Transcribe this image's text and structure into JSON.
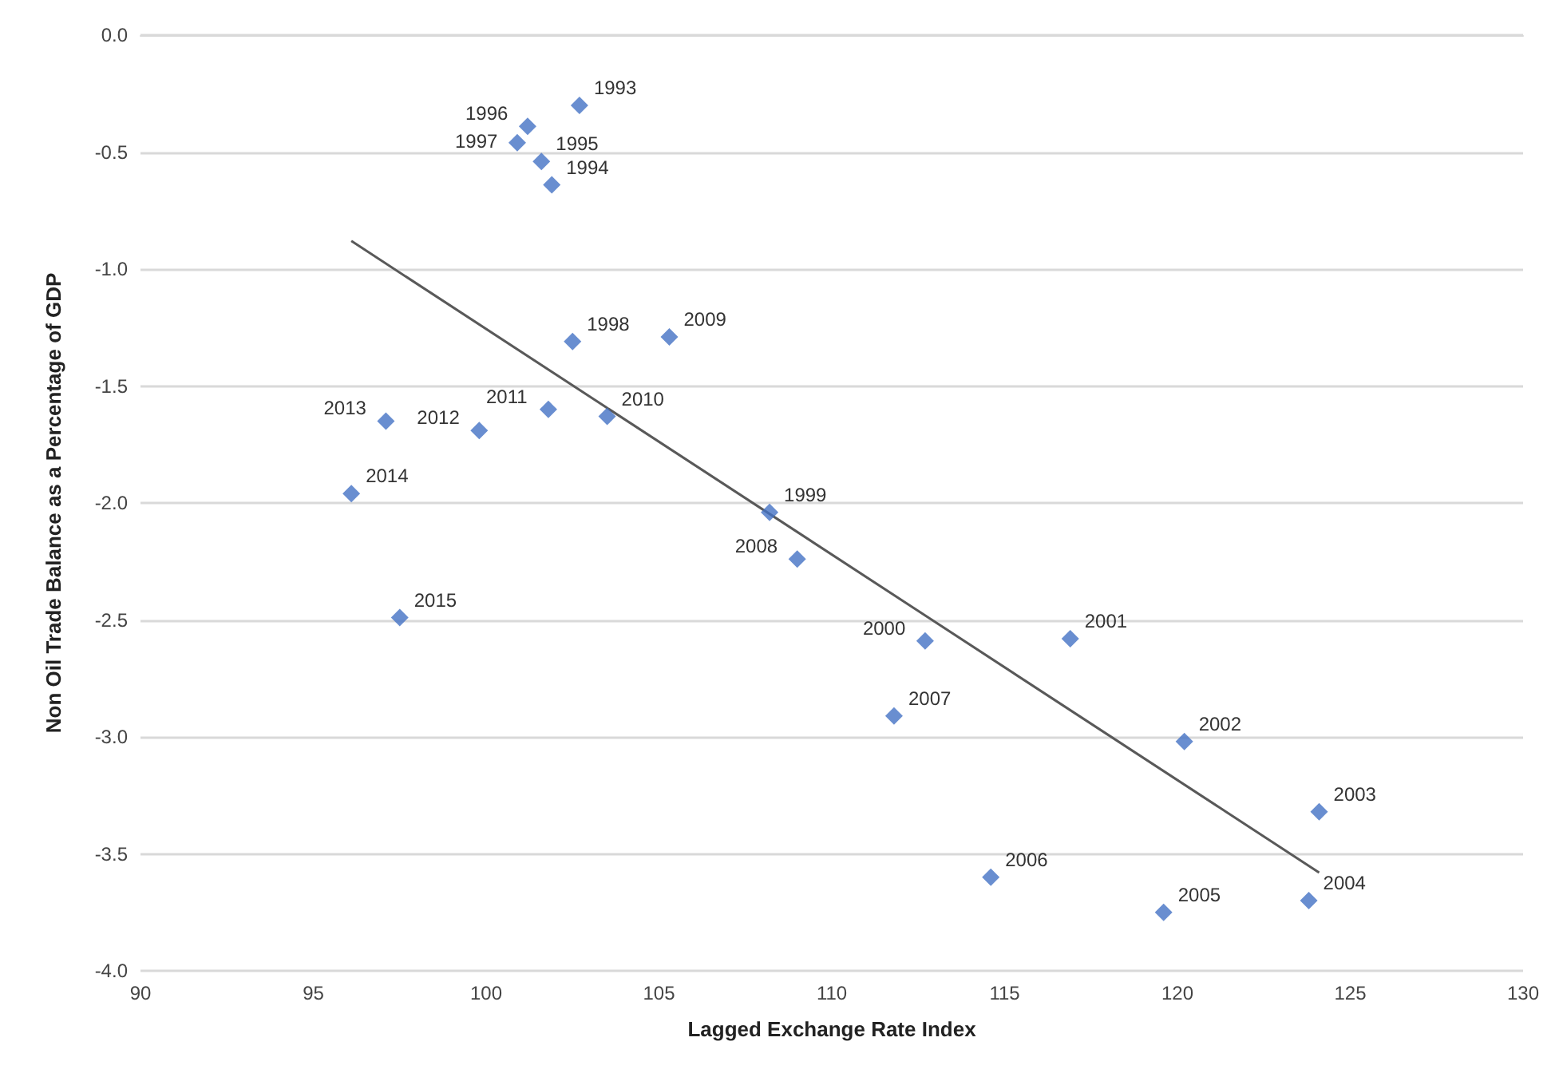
{
  "chart_data": {
    "type": "scatter",
    "xlabel": "Lagged Exchange Rate Index",
    "ylabel": "Non Oil Trade Balance as a Percentage of GDP",
    "xlim": [
      90,
      130
    ],
    "xticks": [
      90,
      95,
      100,
      105,
      110,
      115,
      120,
      125,
      130
    ],
    "ylim": [
      -4,
      0
    ],
    "yticks": [
      {
        "value": -4,
        "label": "-4.0"
      },
      {
        "value": -3.5,
        "label": "-3.5"
      },
      {
        "value": -3,
        "label": "-3.0"
      },
      {
        "value": -2.5,
        "label": "-2.5"
      },
      {
        "value": -2,
        "label": "-2.0"
      },
      {
        "value": -1.5,
        "label": "-1.5"
      },
      {
        "value": -1,
        "label": "-1.0"
      },
      {
        "value": -0.5,
        "label": "-0.5"
      },
      {
        "value": 0,
        "label": "0.0"
      }
    ],
    "grid": "y",
    "marker": "diamond",
    "annotations": [
      {
        "text": "1993",
        "x": 102.7,
        "y": -0.3
      },
      {
        "text": "1994",
        "x": 101.9,
        "y": -0.64
      },
      {
        "text": "1995",
        "x": 101.6,
        "y": -0.54
      },
      {
        "text": "1996",
        "x": 101.2,
        "y": -0.39
      },
      {
        "text": "1997",
        "x": 100.9,
        "y": -0.46
      },
      {
        "text": "1998",
        "x": 102.5,
        "y": -1.31
      },
      {
        "text": "1999",
        "x": 108.2,
        "y": -2.04
      },
      {
        "text": "2000",
        "x": 112.7,
        "y": -2.59
      },
      {
        "text": "2001",
        "x": 116.9,
        "y": -2.58
      },
      {
        "text": "2002",
        "x": 120.2,
        "y": -3.02
      },
      {
        "text": "2003",
        "x": 124.1,
        "y": -3.32
      },
      {
        "text": "2004",
        "x": 123.8,
        "y": -3.7
      },
      {
        "text": "2005",
        "x": 119.6,
        "y": -3.75
      },
      {
        "text": "2006",
        "x": 114.6,
        "y": -3.6
      },
      {
        "text": "2007",
        "x": 111.8,
        "y": -2.91
      },
      {
        "text": "2008",
        "x": 109.0,
        "y": -2.24
      },
      {
        "text": "2009",
        "x": 105.3,
        "y": -1.29
      },
      {
        "text": "2010",
        "x": 103.5,
        "y": -1.63
      },
      {
        "text": "2011",
        "x": 101.8,
        "y": -1.6
      },
      {
        "text": "2012",
        "x": 99.8,
        "y": -1.69
      },
      {
        "text": "2013",
        "x": 97.1,
        "y": -1.65
      },
      {
        "text": "2014",
        "x": 96.1,
        "y": -1.96
      },
      {
        "text": "2015",
        "x": 97.5,
        "y": -2.49
      }
    ],
    "series": [
      {
        "color": "#4472c4",
        "x": [
          102.7,
          101.9,
          101.6,
          101.2,
          100.9,
          102.5,
          108.2,
          112.7,
          116.9,
          120.2,
          124.1,
          123.8,
          119.6,
          114.6,
          111.8,
          109.0,
          105.3,
          103.5,
          101.8,
          99.8,
          97.1,
          96.1,
          97.5
        ],
        "values": [
          -0.3,
          -0.64,
          -0.54,
          -0.39,
          -0.46,
          -1.31,
          -2.04,
          -2.59,
          -2.58,
          -3.02,
          -3.32,
          -3.7,
          -3.75,
          -3.6,
          -2.91,
          -2.24,
          -1.29,
          -1.63,
          -1.6,
          -1.69,
          -1.65,
          -1.96,
          -2.49
        ]
      },
      {
        "type": "line",
        "color": "#595959",
        "marker": "none",
        "x": [
          96.1,
          124.1
        ],
        "values": [
          -0.88,
          -3.58
        ]
      }
    ]
  }
}
